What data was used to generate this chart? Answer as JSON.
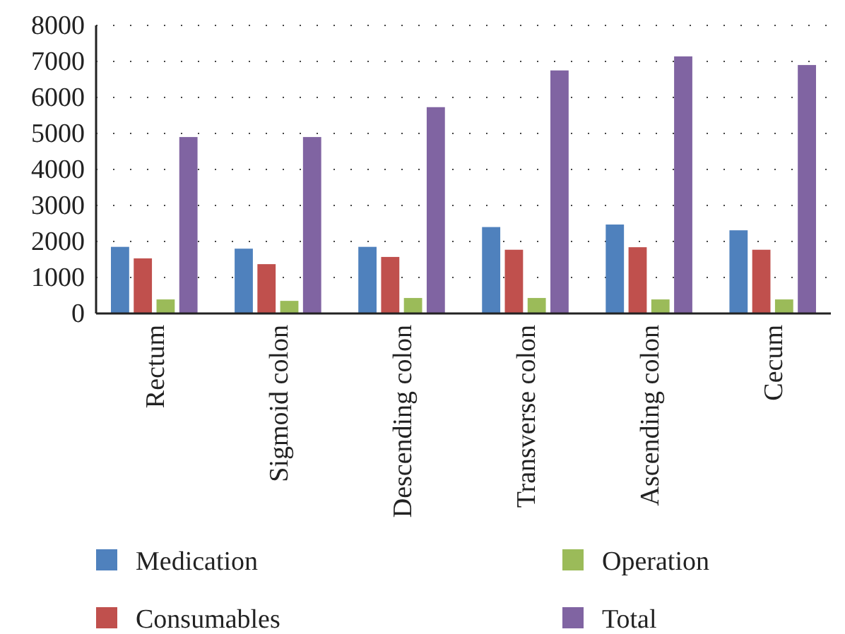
{
  "chart_data": {
    "type": "bar",
    "categories": [
      "Rectum",
      "Sigmoid colon",
      "Descending colon",
      "Transverse colon",
      "Ascending colon",
      "Cecum"
    ],
    "series": [
      {
        "name": "Medication",
        "color": "#4f81bd",
        "values": [
          1850,
          1800,
          1850,
          2400,
          2470,
          2310
        ]
      },
      {
        "name": "Consumables",
        "color": "#c0504d",
        "values": [
          1530,
          1370,
          1570,
          1770,
          1840,
          1770
        ]
      },
      {
        "name": "Operation",
        "color": "#9bbb59",
        "values": [
          390,
          350,
          430,
          430,
          390,
          390
        ]
      },
      {
        "name": "Total",
        "color": "#8064a2",
        "values": [
          4900,
          4900,
          5730,
          6750,
          7140,
          6900
        ]
      }
    ],
    "ylim": [
      0,
      8000
    ],
    "yticks": [
      0,
      1000,
      2000,
      3000,
      4000,
      5000,
      6000,
      7000,
      8000
    ],
    "grid": "y",
    "legend": "bottom"
  }
}
